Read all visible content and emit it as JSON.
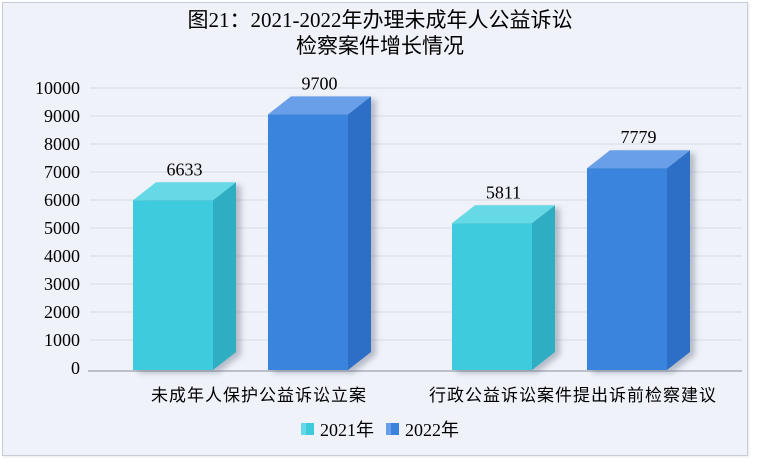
{
  "chart": {
    "title_line1": "图21：2021-2022年办理未成年人公益诉讼",
    "title_line2": "检察案件增长情况"
  },
  "chart_data": {
    "type": "bar",
    "style": "3d-column",
    "title": "图21：2021-2022年办理未成年人公益诉讼检察案件增长情况",
    "categories": [
      "未成年人保护公益诉讼立案",
      "行政公益诉讼案件提出诉前检察建议"
    ],
    "series": [
      {
        "name": "2021年",
        "values": [
          6633,
          5811
        ],
        "color": "#3ecbdd",
        "color_top": "#66d9e6",
        "color_side": "#2fadc2"
      },
      {
        "name": "2022年",
        "values": [
          9700,
          7779
        ],
        "color": "#3b84de",
        "color_top": "#699fe8",
        "color_side": "#2d6ec6"
      }
    ],
    "ylim": [
      0,
      10000
    ],
    "ytick_step": 1000,
    "yticks": [
      0,
      1000,
      2000,
      3000,
      4000,
      5000,
      6000,
      7000,
      8000,
      9000,
      10000
    ],
    "grid": true,
    "bar_labels": [
      [
        6633,
        5811
      ],
      [
        9700,
        7779
      ]
    ],
    "legend_position": "bottom"
  },
  "colors": {
    "panel_background": "#eff2f9",
    "panel_border": "#c7ccd6",
    "gridline": "#d6dbe5",
    "axis_line": "#a9aeb8",
    "text": "#000000",
    "bar_shadow": "rgba(110,120,140,0.45)"
  }
}
